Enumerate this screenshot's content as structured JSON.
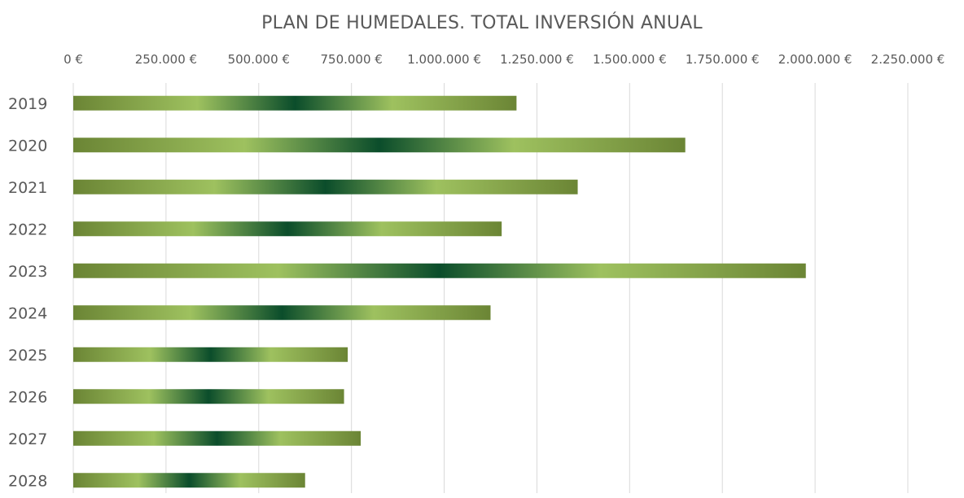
{
  "chart_data": {
    "type": "bar",
    "orientation": "horizontal",
    "title": "PLAN DE HUMEDALES. TOTAL INVERSIÓN ANUAL",
    "xlabel": "",
    "ylabel": "",
    "categories": [
      "2019",
      "2020",
      "2021",
      "2022",
      "2023",
      "2024",
      "2025",
      "2026",
      "2027",
      "2028"
    ],
    "values": [
      1195000,
      1650000,
      1360000,
      1155000,
      1975000,
      1125000,
      740000,
      730000,
      775000,
      625000
    ],
    "xlim": [
      0,
      2250000
    ],
    "x_ticks": [
      0,
      250000,
      500000,
      750000,
      1000000,
      1250000,
      1500000,
      1750000,
      2000000,
      2250000
    ],
    "x_tick_labels": [
      "0 €",
      "250.000 €",
      "500.000 €",
      "750.000 €",
      "1.000.000 €",
      "1.250.000 €",
      "1.500.000 €",
      "1.750.000 €",
      "2.000.000 €",
      "2.250.000 €"
    ],
    "x_axis_position": "top",
    "grid": true,
    "legend": "none",
    "colors": {
      "bar_dark": "#0b4d2b",
      "bar_mid": "#6b8535",
      "bar_light": "#9ec15f",
      "gridline": "#d9d9d9",
      "text": "#595959"
    }
  }
}
